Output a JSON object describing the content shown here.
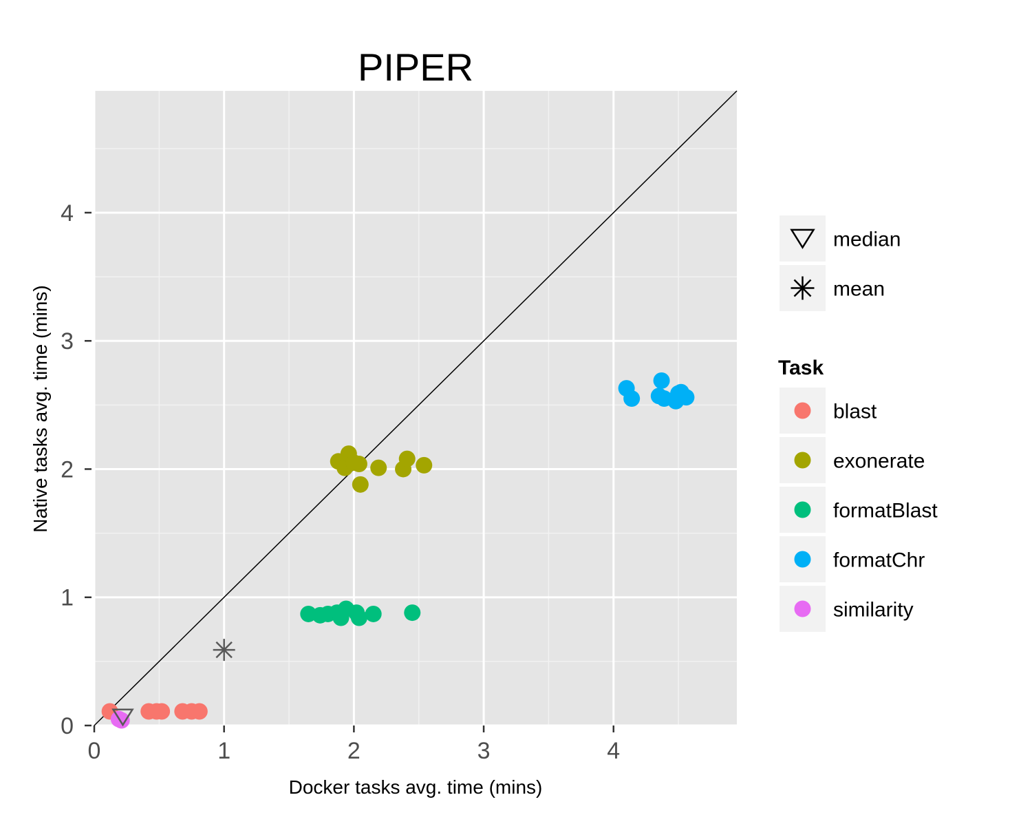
{
  "chart_data": {
    "type": "scatter",
    "title": "PIPER",
    "xlabel": "Docker tasks avg. time (mins)",
    "ylabel": "Native tasks avg. time (mins)",
    "xlim": [
      0,
      4.95
    ],
    "ylim": [
      0,
      4.95
    ],
    "x_ticks": [
      "0",
      "1",
      "2",
      "3",
      "4"
    ],
    "y_ticks": [
      "0",
      "1",
      "2",
      "3",
      "4"
    ],
    "grid": true,
    "reference_line": "y = x",
    "legend_position": "right",
    "legend_title": "Task",
    "series": [
      {
        "name": "blast",
        "color": "#F8766D",
        "points": [
          [
            0.12,
            0.11
          ],
          [
            0.42,
            0.11
          ],
          [
            0.48,
            0.11
          ],
          [
            0.52,
            0.11
          ],
          [
            0.68,
            0.11
          ],
          [
            0.75,
            0.11
          ],
          [
            0.81,
            0.11
          ]
        ]
      },
      {
        "name": "exonerate",
        "color": "#A3A500",
        "points": [
          [
            1.88,
            2.06
          ],
          [
            1.93,
            2.01
          ],
          [
            1.96,
            2.12
          ],
          [
            2.0,
            2.05
          ],
          [
            2.04,
            2.04
          ],
          [
            2.05,
            1.88
          ],
          [
            2.19,
            2.01
          ],
          [
            2.38,
            2.0
          ],
          [
            2.41,
            2.08
          ],
          [
            2.54,
            2.03
          ]
        ]
      },
      {
        "name": "formatBlast",
        "color": "#00BF7D",
        "points": [
          [
            1.65,
            0.87
          ],
          [
            1.74,
            0.86
          ],
          [
            1.8,
            0.87
          ],
          [
            1.87,
            0.88
          ],
          [
            1.9,
            0.84
          ],
          [
            1.94,
            0.91
          ],
          [
            2.02,
            0.88
          ],
          [
            2.04,
            0.84
          ],
          [
            2.15,
            0.87
          ],
          [
            2.45,
            0.88
          ]
        ]
      },
      {
        "name": "formatChr",
        "color": "#00B0F6",
        "points": [
          [
            4.1,
            2.63
          ],
          [
            4.14,
            2.55
          ],
          [
            4.35,
            2.57
          ],
          [
            4.37,
            2.69
          ],
          [
            4.39,
            2.55
          ],
          [
            4.48,
            2.53
          ],
          [
            4.5,
            2.59
          ],
          [
            4.52,
            2.6
          ],
          [
            4.56,
            2.56
          ]
        ]
      },
      {
        "name": "similarity",
        "color": "#E76BF3",
        "points": [
          [
            0.19,
            0.05
          ],
          [
            0.21,
            0.04
          ]
        ]
      }
    ],
    "summary_markers": [
      {
        "name": "median",
        "shape": "triangle-down",
        "x": 0.22,
        "y": 0.08,
        "color": "#595959"
      },
      {
        "name": "mean",
        "shape": "asterisk",
        "x": 1.0,
        "y": 0.59,
        "color": "#595959"
      }
    ]
  }
}
